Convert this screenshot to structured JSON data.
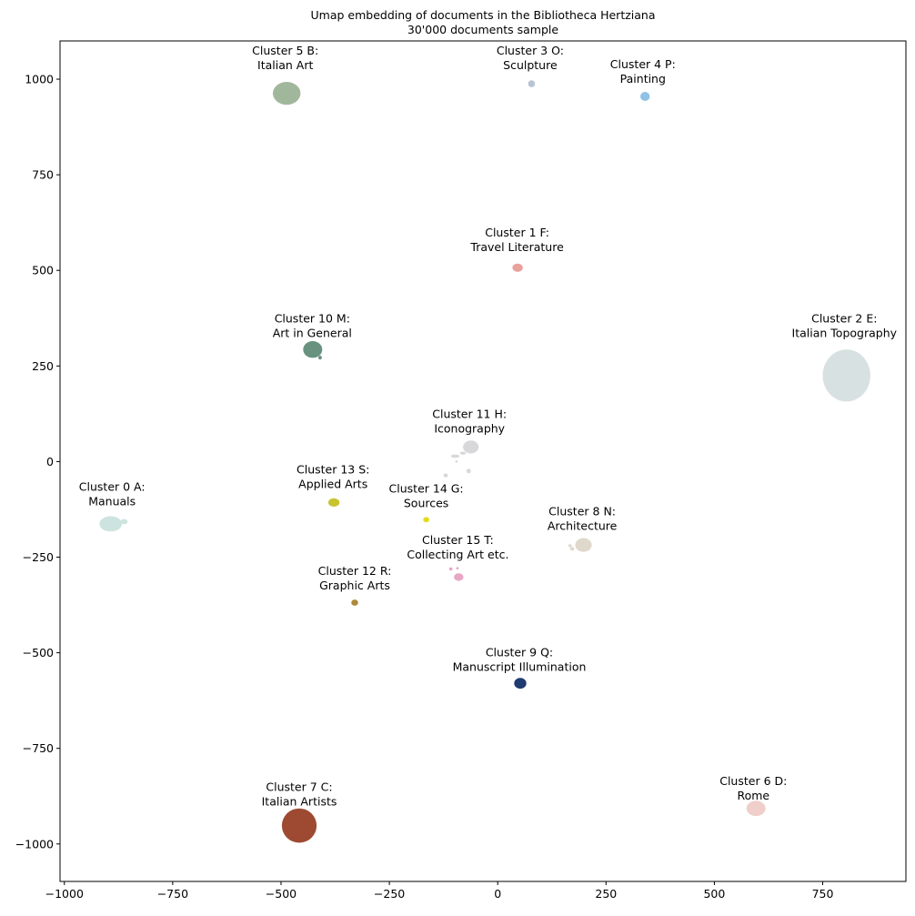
{
  "chart_data": {
    "type": "scatter",
    "title": "Umap embedding of documents in the Bibliotheca Hertziana",
    "subtitle": "30'000 documents sample",
    "xlabel": "",
    "ylabel": "",
    "xlim": [
      -1010,
      942
    ],
    "ylim": [
      -1098,
      1100
    ],
    "xticks": [
      -1000,
      -750,
      -500,
      -250,
      0,
      250,
      500,
      750
    ],
    "yticks": [
      -1000,
      -750,
      -500,
      -250,
      0,
      250,
      500,
      750,
      1000
    ],
    "xtick_labels": [
      "−1000",
      "−750",
      "−500",
      "−250",
      "0",
      "250",
      "500",
      "750"
    ],
    "ytick_labels": [
      "−1000",
      "−750",
      "−500",
      "−250",
      "0",
      "250",
      "500",
      "750",
      "1000"
    ],
    "grid": false,
    "clusters": [
      {
        "line1": "Cluster 0 A:",
        "line2": "Manuals",
        "label_x": -890,
        "label_y": -95,
        "color": "#cde3df",
        "blobs": [
          [
            -893,
            -163,
            26,
            20
          ],
          [
            -862,
            -157,
            8,
            7
          ]
        ]
      },
      {
        "line1": "Cluster 1 F:",
        "line2": "Travel Literature",
        "label_x": 45,
        "label_y": 570,
        "color": "#e9a19c",
        "blobs": [
          [
            46,
            507,
            12,
            11
          ]
        ]
      },
      {
        "line1": "Cluster 2 E:",
        "line2": "Italian Topography",
        "label_x": 800,
        "label_y": 345,
        "color": "#d8e1e2",
        "blobs": [
          [
            805,
            225,
            55,
            68
          ],
          [
            780,
            240,
            22,
            22
          ],
          [
            830,
            205,
            20,
            22
          ]
        ]
      },
      {
        "line1": "Cluster 3 O:",
        "line2": "Sculpture",
        "label_x": 75,
        "label_y": 1045,
        "color": "#b7c4d4",
        "blobs": [
          [
            78,
            988,
            8,
            9
          ]
        ]
      },
      {
        "line1": "Cluster 4 P:",
        "line2": "Painting",
        "label_x": 335,
        "label_y": 1010,
        "color": "#8fc2e6",
        "blobs": [
          [
            340,
            955,
            11,
            12
          ]
        ]
      },
      {
        "line1": "Cluster 5 B:",
        "line2": "Italian Art",
        "label_x": -490,
        "label_y": 1045,
        "color": "#a1b79b",
        "blobs": [
          [
            -487,
            963,
            32,
            30
          ]
        ]
      },
      {
        "line1": "Cluster 6 D:",
        "line2": "Rome",
        "label_x": 590,
        "label_y": -865,
        "color": "#f0cfca",
        "blobs": [
          [
            596,
            -907,
            22,
            20
          ]
        ]
      },
      {
        "line1": "Cluster 7 C:",
        "line2": "Italian Artists",
        "label_x": -458,
        "label_y": -880,
        "color": "#9e4a33",
        "blobs": [
          [
            -458,
            -952,
            40,
            45
          ],
          [
            -440,
            -935,
            12,
            14
          ]
        ]
      },
      {
        "line1": "Cluster 8 N:",
        "line2": "Architecture",
        "label_x": 195,
        "label_y": -160,
        "color": "#dfd8cc",
        "blobs": [
          [
            198,
            -218,
            19,
            18
          ],
          [
            172,
            -228,
            5,
            5
          ],
          [
            167,
            -220,
            4,
            4
          ]
        ]
      },
      {
        "line1": "Cluster 9 Q:",
        "line2": "Manuscript Illumination",
        "label_x": 50,
        "label_y": -528,
        "color": "#1f3b6f",
        "blobs": [
          [
            52,
            -580,
            14,
            14
          ]
        ]
      },
      {
        "line1": "Cluster 10 M:",
        "line2": "Art in General",
        "label_x": -428,
        "label_y": 345,
        "color": "#68927f",
        "blobs": [
          [
            -427,
            293,
            22,
            22
          ],
          [
            -410,
            272,
            4,
            5
          ]
        ]
      },
      {
        "line1": "Cluster 11 H:",
        "line2": "Iconography",
        "label_x": -65,
        "label_y": 95,
        "color": "#d8d8da",
        "blobs": [
          [
            -62,
            38,
            18,
            17
          ],
          [
            -98,
            14,
            10,
            4
          ],
          [
            -80,
            22,
            7,
            4
          ],
          [
            -120,
            -36,
            5,
            5
          ],
          [
            -67,
            -25,
            5,
            6
          ],
          [
            -95,
            0,
            3,
            3
          ]
        ]
      },
      {
        "line1": "Cluster 12 R:",
        "line2": "Graphic Arts",
        "label_x": -330,
        "label_y": -315,
        "color": "#ad8a3b",
        "blobs": [
          [
            -330,
            -369,
            8,
            8
          ]
        ]
      },
      {
        "line1": "Cluster 13 S:",
        "line2": "Applied Arts",
        "label_x": -380,
        "label_y": -50,
        "color": "#c8c42f",
        "blobs": [
          [
            -378,
            -107,
            13,
            11
          ]
        ]
      },
      {
        "line1": "Cluster 14 G:",
        "line2": "Sources",
        "label_x": -165,
        "label_y": -100,
        "color": "#e2dc18",
        "blobs": [
          [
            -165,
            -152,
            7,
            7
          ]
        ]
      },
      {
        "line1": "Cluster 15 T:",
        "line2": "Collecting Art etc.",
        "label_x": -92,
        "label_y": -235,
        "color": "#e8a7c6",
        "blobs": [
          [
            -90,
            -302,
            11,
            10
          ],
          [
            -108,
            -281,
            4,
            4
          ],
          [
            -93,
            -279,
            3,
            3
          ]
        ]
      }
    ]
  }
}
